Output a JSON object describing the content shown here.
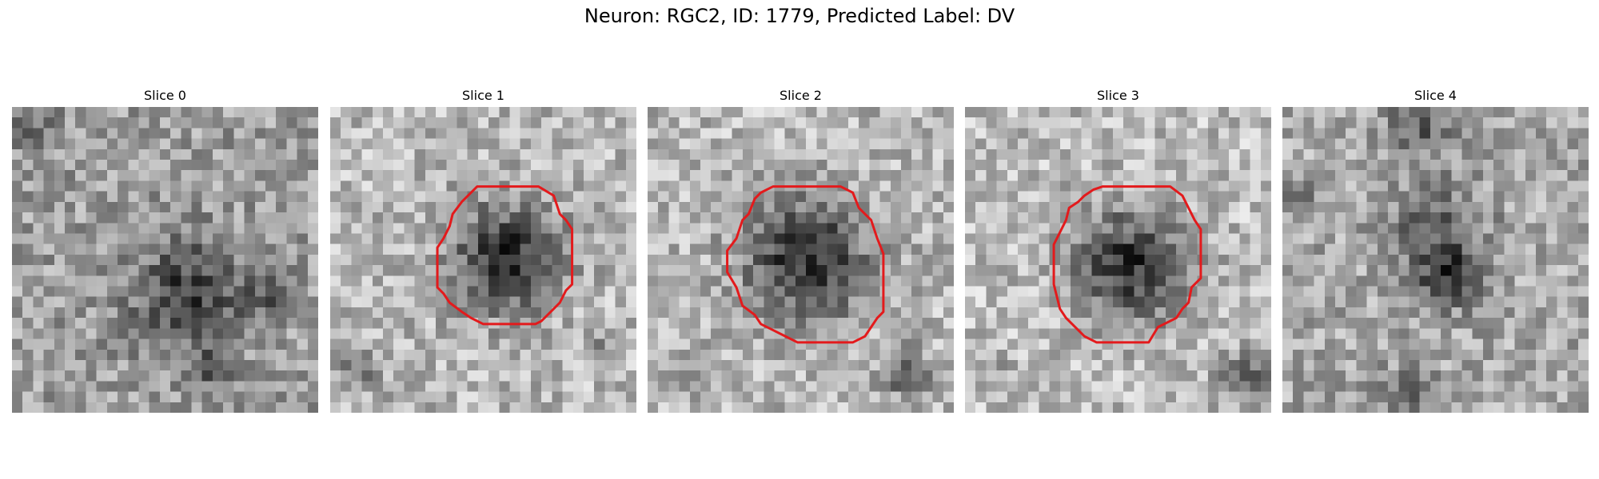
{
  "figure": {
    "title": "Neuron: RGC2, ID: 1779, Predicted Label: DV",
    "colormap": "gray",
    "outline_color": "#e31a1c",
    "grid_size": 29
  },
  "panels": [
    {
      "title": "Slice 0",
      "has_outline": false,
      "dark_blobs": [
        [
          0.58,
          0.62,
          0.22,
          0.4
        ],
        [
          0.65,
          0.85,
          0.07,
          0.35
        ],
        [
          0.05,
          0.05,
          0.1,
          0.25
        ],
        [
          0.85,
          0.6,
          0.1,
          0.25
        ]
      ],
      "base_brightness": 0.62
    },
    {
      "title": "Slice 1",
      "has_outline": true,
      "outline_polygon": [
        [
          0.48,
          0.26
        ],
        [
          0.68,
          0.26
        ],
        [
          0.73,
          0.29
        ],
        [
          0.75,
          0.35
        ],
        [
          0.77,
          0.37
        ],
        [
          0.79,
          0.4
        ],
        [
          0.79,
          0.58
        ],
        [
          0.77,
          0.6
        ],
        [
          0.75,
          0.64
        ],
        [
          0.73,
          0.66
        ],
        [
          0.71,
          0.68
        ],
        [
          0.69,
          0.7
        ],
        [
          0.67,
          0.71
        ],
        [
          0.5,
          0.71
        ],
        [
          0.46,
          0.69
        ],
        [
          0.43,
          0.67
        ],
        [
          0.39,
          0.64
        ],
        [
          0.37,
          0.61
        ],
        [
          0.35,
          0.59
        ],
        [
          0.35,
          0.46
        ],
        [
          0.37,
          0.43
        ],
        [
          0.39,
          0.39
        ],
        [
          0.4,
          0.35
        ],
        [
          0.43,
          0.31
        ],
        [
          0.45,
          0.29
        ]
      ],
      "dark_blobs": [
        [
          0.57,
          0.49,
          0.22,
          0.55
        ],
        [
          0.9,
          0.8,
          0.06,
          0.2
        ],
        [
          0.1,
          0.85,
          0.1,
          0.18
        ]
      ],
      "base_brightness": 0.72
    },
    {
      "title": "Slice 2",
      "has_outline": true,
      "outline_polygon": [
        [
          0.41,
          0.26
        ],
        [
          0.63,
          0.26
        ],
        [
          0.67,
          0.28
        ],
        [
          0.69,
          0.33
        ],
        [
          0.71,
          0.35
        ],
        [
          0.73,
          0.37
        ],
        [
          0.75,
          0.43
        ],
        [
          0.77,
          0.48
        ],
        [
          0.77,
          0.67
        ],
        [
          0.75,
          0.69
        ],
        [
          0.73,
          0.72
        ],
        [
          0.71,
          0.75
        ],
        [
          0.67,
          0.77
        ],
        [
          0.49,
          0.77
        ],
        [
          0.45,
          0.75
        ],
        [
          0.41,
          0.73
        ],
        [
          0.37,
          0.71
        ],
        [
          0.35,
          0.68
        ],
        [
          0.31,
          0.65
        ],
        [
          0.29,
          0.59
        ],
        [
          0.26,
          0.54
        ],
        [
          0.26,
          0.47
        ],
        [
          0.29,
          0.43
        ],
        [
          0.31,
          0.37
        ],
        [
          0.33,
          0.35
        ],
        [
          0.35,
          0.3
        ],
        [
          0.37,
          0.28
        ]
      ],
      "dark_blobs": [
        [
          0.52,
          0.5,
          0.25,
          0.55
        ],
        [
          0.85,
          0.88,
          0.1,
          0.3
        ],
        [
          0.15,
          0.88,
          0.08,
          0.2
        ]
      ],
      "base_brightness": 0.72
    },
    {
      "title": "Slice 3",
      "has_outline": true,
      "outline_polygon": [
        [
          0.45,
          0.26
        ],
        [
          0.67,
          0.26
        ],
        [
          0.71,
          0.29
        ],
        [
          0.73,
          0.33
        ],
        [
          0.75,
          0.37
        ],
        [
          0.77,
          0.4
        ],
        [
          0.77,
          0.56
        ],
        [
          0.74,
          0.59
        ],
        [
          0.73,
          0.64
        ],
        [
          0.71,
          0.66
        ],
        [
          0.69,
          0.69
        ],
        [
          0.65,
          0.71
        ],
        [
          0.63,
          0.72
        ],
        [
          0.6,
          0.77
        ],
        [
          0.43,
          0.77
        ],
        [
          0.39,
          0.75
        ],
        [
          0.37,
          0.73
        ],
        [
          0.35,
          0.71
        ],
        [
          0.33,
          0.69
        ],
        [
          0.31,
          0.66
        ],
        [
          0.3,
          0.62
        ],
        [
          0.29,
          0.58
        ],
        [
          0.29,
          0.45
        ],
        [
          0.31,
          0.41
        ],
        [
          0.33,
          0.37
        ],
        [
          0.34,
          0.33
        ],
        [
          0.37,
          0.31
        ],
        [
          0.39,
          0.29
        ],
        [
          0.42,
          0.27
        ]
      ],
      "dark_blobs": [
        [
          0.54,
          0.52,
          0.23,
          0.55
        ],
        [
          0.92,
          0.88,
          0.1,
          0.45
        ],
        [
          0.08,
          0.85,
          0.06,
          0.15
        ]
      ],
      "base_brightness": 0.74
    },
    {
      "title": "Slice 4",
      "has_outline": false,
      "dark_blobs": [
        [
          0.55,
          0.55,
          0.12,
          0.45
        ],
        [
          0.5,
          0.4,
          0.2,
          0.25
        ],
        [
          0.45,
          0.05,
          0.12,
          0.3
        ],
        [
          0.05,
          0.3,
          0.06,
          0.25
        ],
        [
          0.4,
          0.95,
          0.12,
          0.2
        ]
      ],
      "base_brightness": 0.66
    }
  ]
}
